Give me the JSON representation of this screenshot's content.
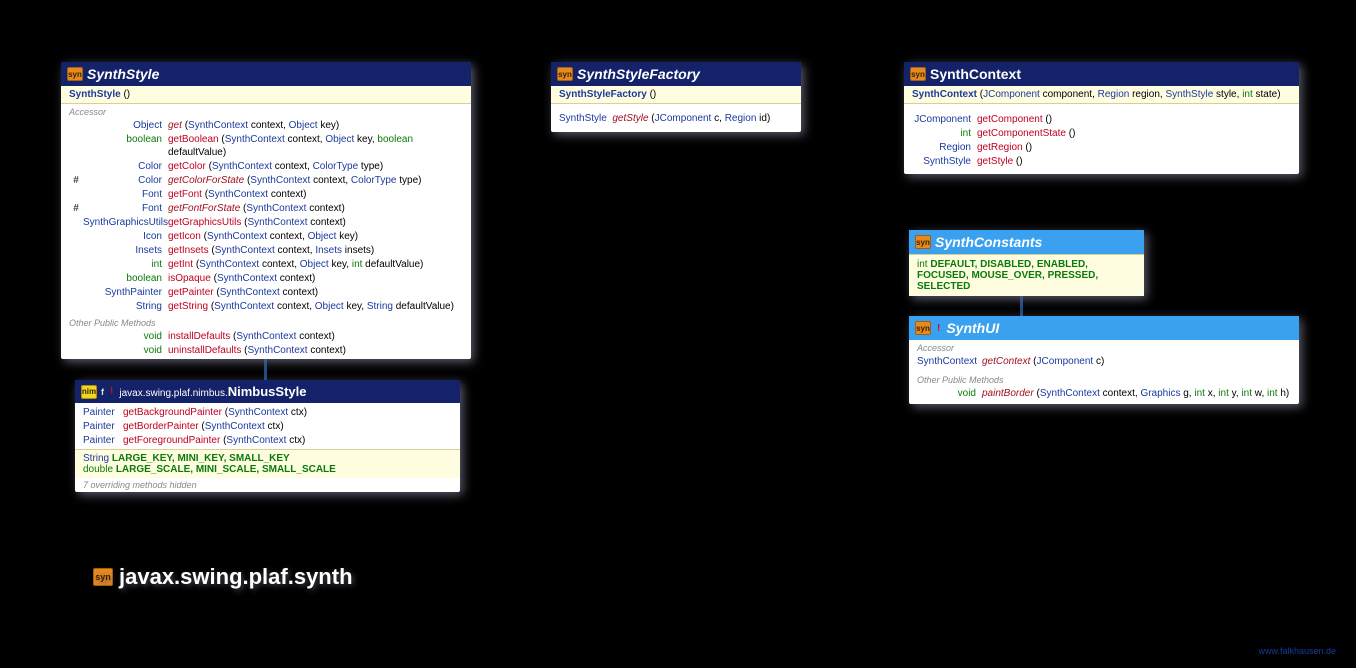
{
  "palette": {
    "bg": "#000000",
    "box_bg": "#ffffff",
    "header_dark": "#14226a",
    "header_light": "#3aa0f0",
    "yellow_band": "#fffde0",
    "text_blue": "#1a3a9e",
    "text_green": "#0a7a0a",
    "text_red": "#c00020",
    "text_darkred": "#a01020",
    "accent_orange": "#e68a1e",
    "accent_yellow": "#f0d820",
    "grey": "#888888"
  },
  "package": {
    "label": "javax.swing.plaf.synth",
    "icon_text": "syn"
  },
  "credit": "www.falkhausen.de",
  "classes": {
    "synthStyle": {
      "title": "SynthStyle",
      "header_bg": "#14226a",
      "header_fg": "#ffffff",
      "title_fontsize": 14,
      "icon_text": "syn",
      "constructor": {
        "name": "SynthStyle",
        "params": " ()"
      },
      "sections": [
        {
          "label": "Accessor",
          "methods": [
            {
              "marker": "",
              "ret": "Object",
              "ret_c": "c-blue",
              "name": "get",
              "name_c": "c-dred",
              "italic": true,
              "params_parts": [
                [
                  "(",
                  ""
                ],
                [
                  "SynthContext",
                  "c-blue"
                ],
                [
                  " context, ",
                  ""
                ],
                [
                  "Object",
                  "c-blue"
                ],
                [
                  " key)",
                  ""
                ]
              ]
            },
            {
              "marker": "",
              "ret": "boolean",
              "ret_c": "c-green",
              "name": "getBoolean",
              "name_c": "c-red",
              "params_parts": [
                [
                  "(",
                  ""
                ],
                [
                  "SynthContext",
                  "c-blue"
                ],
                [
                  " context, ",
                  ""
                ],
                [
                  "Object",
                  "c-blue"
                ],
                [
                  " key, ",
                  ""
                ],
                [
                  "boolean",
                  "c-green"
                ],
                [
                  " defaultValue)",
                  ""
                ]
              ]
            },
            {
              "marker": "",
              "ret": "Color",
              "ret_c": "c-blue",
              "name": "getColor",
              "name_c": "c-red",
              "params_parts": [
                [
                  "(",
                  ""
                ],
                [
                  "SynthContext",
                  "c-blue"
                ],
                [
                  " context, ",
                  ""
                ],
                [
                  "ColorType",
                  "c-blue"
                ],
                [
                  " type)",
                  ""
                ]
              ]
            },
            {
              "marker": "#",
              "ret": "Color",
              "ret_c": "c-blue",
              "name": "getColorForState",
              "name_c": "c-dred",
              "italic": true,
              "params_parts": [
                [
                  "(",
                  ""
                ],
                [
                  "SynthContext",
                  "c-blue"
                ],
                [
                  " context, ",
                  ""
                ],
                [
                  "ColorType",
                  "c-blue"
                ],
                [
                  " type)",
                  ""
                ]
              ]
            },
            {
              "marker": "",
              "ret": "Font",
              "ret_c": "c-blue",
              "name": "getFont",
              "name_c": "c-red",
              "params_parts": [
                [
                  "(",
                  ""
                ],
                [
                  "SynthContext",
                  "c-blue"
                ],
                [
                  " context)",
                  ""
                ]
              ]
            },
            {
              "marker": "#",
              "ret": "Font",
              "ret_c": "c-blue",
              "name": "getFontForState",
              "name_c": "c-dred",
              "italic": true,
              "params_parts": [
                [
                  "(",
                  ""
                ],
                [
                  "SynthContext",
                  "c-blue"
                ],
                [
                  " context)",
                  ""
                ]
              ]
            },
            {
              "marker": "",
              "ret": "SynthGraphicsUtils",
              "ret_c": "c-blue",
              "name": "getGraphicsUtils",
              "name_c": "c-red",
              "params_parts": [
                [
                  "(",
                  ""
                ],
                [
                  "SynthContext",
                  "c-blue"
                ],
                [
                  " context)",
                  ""
                ]
              ]
            },
            {
              "marker": "",
              "ret": "Icon",
              "ret_c": "c-blue",
              "name": "getIcon",
              "name_c": "c-red",
              "params_parts": [
                [
                  "(",
                  ""
                ],
                [
                  "SynthContext",
                  "c-blue"
                ],
                [
                  " context, ",
                  ""
                ],
                [
                  "Object",
                  "c-blue"
                ],
                [
                  " key)",
                  ""
                ]
              ]
            },
            {
              "marker": "",
              "ret": "Insets",
              "ret_c": "c-blue",
              "name": "getInsets",
              "name_c": "c-red",
              "params_parts": [
                [
                  "(",
                  ""
                ],
                [
                  "SynthContext",
                  "c-blue"
                ],
                [
                  " context, ",
                  ""
                ],
                [
                  "Insets",
                  "c-blue"
                ],
                [
                  " insets)",
                  ""
                ]
              ]
            },
            {
              "marker": "",
              "ret": "int",
              "ret_c": "c-green",
              "name": "getInt",
              "name_c": "c-red",
              "params_parts": [
                [
                  "(",
                  ""
                ],
                [
                  "SynthContext",
                  "c-blue"
                ],
                [
                  " context, ",
                  ""
                ],
                [
                  "Object",
                  "c-blue"
                ],
                [
                  " key, ",
                  ""
                ],
                [
                  "int",
                  "c-green"
                ],
                [
                  " defaultValue)",
                  ""
                ]
              ]
            },
            {
              "marker": "",
              "ret": "boolean",
              "ret_c": "c-green",
              "name": "isOpaque",
              "name_c": "c-red",
              "params_parts": [
                [
                  "(",
                  ""
                ],
                [
                  "SynthContext",
                  "c-blue"
                ],
                [
                  " context)",
                  ""
                ]
              ]
            },
            {
              "marker": "",
              "ret": "SynthPainter",
              "ret_c": "c-blue",
              "name": "getPainter",
              "name_c": "c-red",
              "params_parts": [
                [
                  "(",
                  ""
                ],
                [
                  "SynthContext",
                  "c-blue"
                ],
                [
                  " context)",
                  ""
                ]
              ]
            },
            {
              "marker": "",
              "ret": "String",
              "ret_c": "c-blue",
              "name": "getString",
              "name_c": "c-red",
              "params_parts": [
                [
                  "(",
                  ""
                ],
                [
                  "SynthContext",
                  "c-blue"
                ],
                [
                  " context, ",
                  ""
                ],
                [
                  "Object",
                  "c-blue"
                ],
                [
                  " key, ",
                  ""
                ],
                [
                  "String",
                  "c-blue"
                ],
                [
                  " defaultValue)",
                  ""
                ]
              ]
            }
          ]
        },
        {
          "label": "Other Public Methods",
          "methods": [
            {
              "marker": "",
              "ret": "void",
              "ret_c": "c-green",
              "name": "installDefaults",
              "name_c": "c-red",
              "params_parts": [
                [
                  "(",
                  ""
                ],
                [
                  "SynthContext",
                  "c-blue"
                ],
                [
                  " context)",
                  ""
                ]
              ]
            },
            {
              "marker": "",
              "ret": "void",
              "ret_c": "c-green",
              "name": "uninstallDefaults",
              "name_c": "c-red",
              "params_parts": [
                [
                  "(",
                  ""
                ],
                [
                  "SynthContext",
                  "c-blue"
                ],
                [
                  " context)",
                  ""
                ]
              ]
            }
          ]
        }
      ]
    },
    "nimbusStyle": {
      "title": "NimbusStyle",
      "prefix_pkg": "javax.swing.plaf.nimbus.",
      "marker_f": "f",
      "bang": "!",
      "header_bg": "#14226a",
      "header_fg": "#ffffff",
      "icon_text": "nim",
      "methods": [
        {
          "ret": "Painter",
          "ret_c": "c-blue",
          "name": "getBackgroundPainter",
          "name_c": "c-red",
          "params_parts": [
            [
              "(",
              ""
            ],
            [
              "SynthContext",
              "c-blue"
            ],
            [
              " ctx)",
              ""
            ]
          ]
        },
        {
          "ret": "Painter",
          "ret_c": "c-blue",
          "name": "getBorderPainter",
          "name_c": "c-red",
          "params_parts": [
            [
              "(",
              ""
            ],
            [
              "SynthContext",
              "c-blue"
            ],
            [
              " ctx)",
              ""
            ]
          ]
        },
        {
          "ret": "Painter",
          "ret_c": "c-blue",
          "name": "getForegroundPainter",
          "name_c": "c-red",
          "params_parts": [
            [
              "(",
              ""
            ],
            [
              "SynthContext",
              "c-blue"
            ],
            [
              " ctx)",
              ""
            ]
          ]
        }
      ],
      "constants": [
        {
          "type": "String",
          "type_c": "c-blue",
          "names": "LARGE_KEY, MINI_KEY, SMALL_KEY"
        },
        {
          "type": "double",
          "type_c": "c-green",
          "names": "LARGE_SCALE, MINI_SCALE, SMALL_SCALE"
        }
      ],
      "hidden_note": "7 overriding methods hidden"
    },
    "synthStyleFactory": {
      "title": "SynthStyleFactory",
      "header_bg": "#14226a",
      "header_fg": "#ffffff",
      "icon_text": "syn",
      "constructor": {
        "name": "SynthStyleFactory",
        "params": " ()"
      },
      "methods": [
        {
          "ret": "SynthStyle",
          "ret_c": "c-blue",
          "name": "getStyle",
          "name_c": "c-dred",
          "italic": true,
          "params_parts": [
            [
              "(",
              ""
            ],
            [
              "JComponent",
              "c-blue"
            ],
            [
              " c, ",
              ""
            ],
            [
              "Region",
              "c-blue"
            ],
            [
              " id)",
              ""
            ]
          ]
        }
      ]
    },
    "synthContext": {
      "title": "SynthContext",
      "header_bg": "#14226a",
      "header_fg": "#ffffff",
      "icon_text": "syn",
      "constructor": {
        "name": "SynthContext",
        "params_parts": [
          [
            " (",
            ""
          ],
          [
            "JComponent",
            "c-blue"
          ],
          [
            " component, ",
            ""
          ],
          [
            "Region",
            "c-blue"
          ],
          [
            " region, ",
            ""
          ],
          [
            "SynthStyle",
            "c-blue"
          ],
          [
            " style, ",
            ""
          ],
          [
            "int",
            "c-green"
          ],
          [
            " state)",
            ""
          ]
        ]
      },
      "methods": [
        {
          "ret": "JComponent",
          "ret_c": "c-blue",
          "name": "getComponent",
          "name_c": "c-red",
          "params_parts": [
            [
              "()",
              ""
            ]
          ]
        },
        {
          "ret": "int",
          "ret_c": "c-green",
          "name": "getComponentState",
          "name_c": "c-red",
          "params_parts": [
            [
              "()",
              ""
            ]
          ]
        },
        {
          "ret": "Region",
          "ret_c": "c-blue",
          "name": "getRegion",
          "name_c": "c-red",
          "params_parts": [
            [
              "()",
              ""
            ]
          ]
        },
        {
          "ret": "SynthStyle",
          "ret_c": "c-blue",
          "name": "getStyle",
          "name_c": "c-red",
          "params_parts": [
            [
              "()",
              ""
            ]
          ]
        }
      ]
    },
    "synthConstants": {
      "title": "SynthConstants",
      "header_bg": "#3aa0f0",
      "header_fg": "#ffffff",
      "icon_text": "syn",
      "constants_prefix": "int",
      "constants": "DEFAULT, DISABLED, ENABLED, FOCUSED, MOUSE_OVER, PRESSED, SELECTED"
    },
    "synthUI": {
      "title": "SynthUI",
      "bang": "!",
      "header_bg": "#3aa0f0",
      "header_fg": "#ffffff",
      "icon_text": "syn",
      "sections": [
        {
          "label": "Accessor",
          "methods": [
            {
              "ret": "SynthContext",
              "ret_c": "c-blue",
              "name": "getContext",
              "name_c": "c-dred",
              "italic": true,
              "params_parts": [
                [
                  "(",
                  ""
                ],
                [
                  "JComponent",
                  "c-blue"
                ],
                [
                  " c)",
                  ""
                ]
              ]
            }
          ]
        },
        {
          "label": "Other Public Methods",
          "methods": [
            {
              "ret": "void",
              "ret_c": "c-green",
              "name": "paintBorder",
              "name_c": "c-dred",
              "italic": true,
              "params_parts": [
                [
                  "(",
                  ""
                ],
                [
                  "SynthContext",
                  "c-blue"
                ],
                [
                  " context, ",
                  ""
                ],
                [
                  "Graphics",
                  "c-blue"
                ],
                [
                  " g, ",
                  ""
                ],
                [
                  "int",
                  "c-green"
                ],
                [
                  " x, ",
                  ""
                ],
                [
                  "int",
                  "c-green"
                ],
                [
                  " y, ",
                  ""
                ],
                [
                  "int",
                  "c-green"
                ],
                [
                  " w, ",
                  ""
                ],
                [
                  "int",
                  "c-green"
                ],
                [
                  " h)",
                  ""
                ]
              ]
            }
          ]
        }
      ]
    }
  }
}
